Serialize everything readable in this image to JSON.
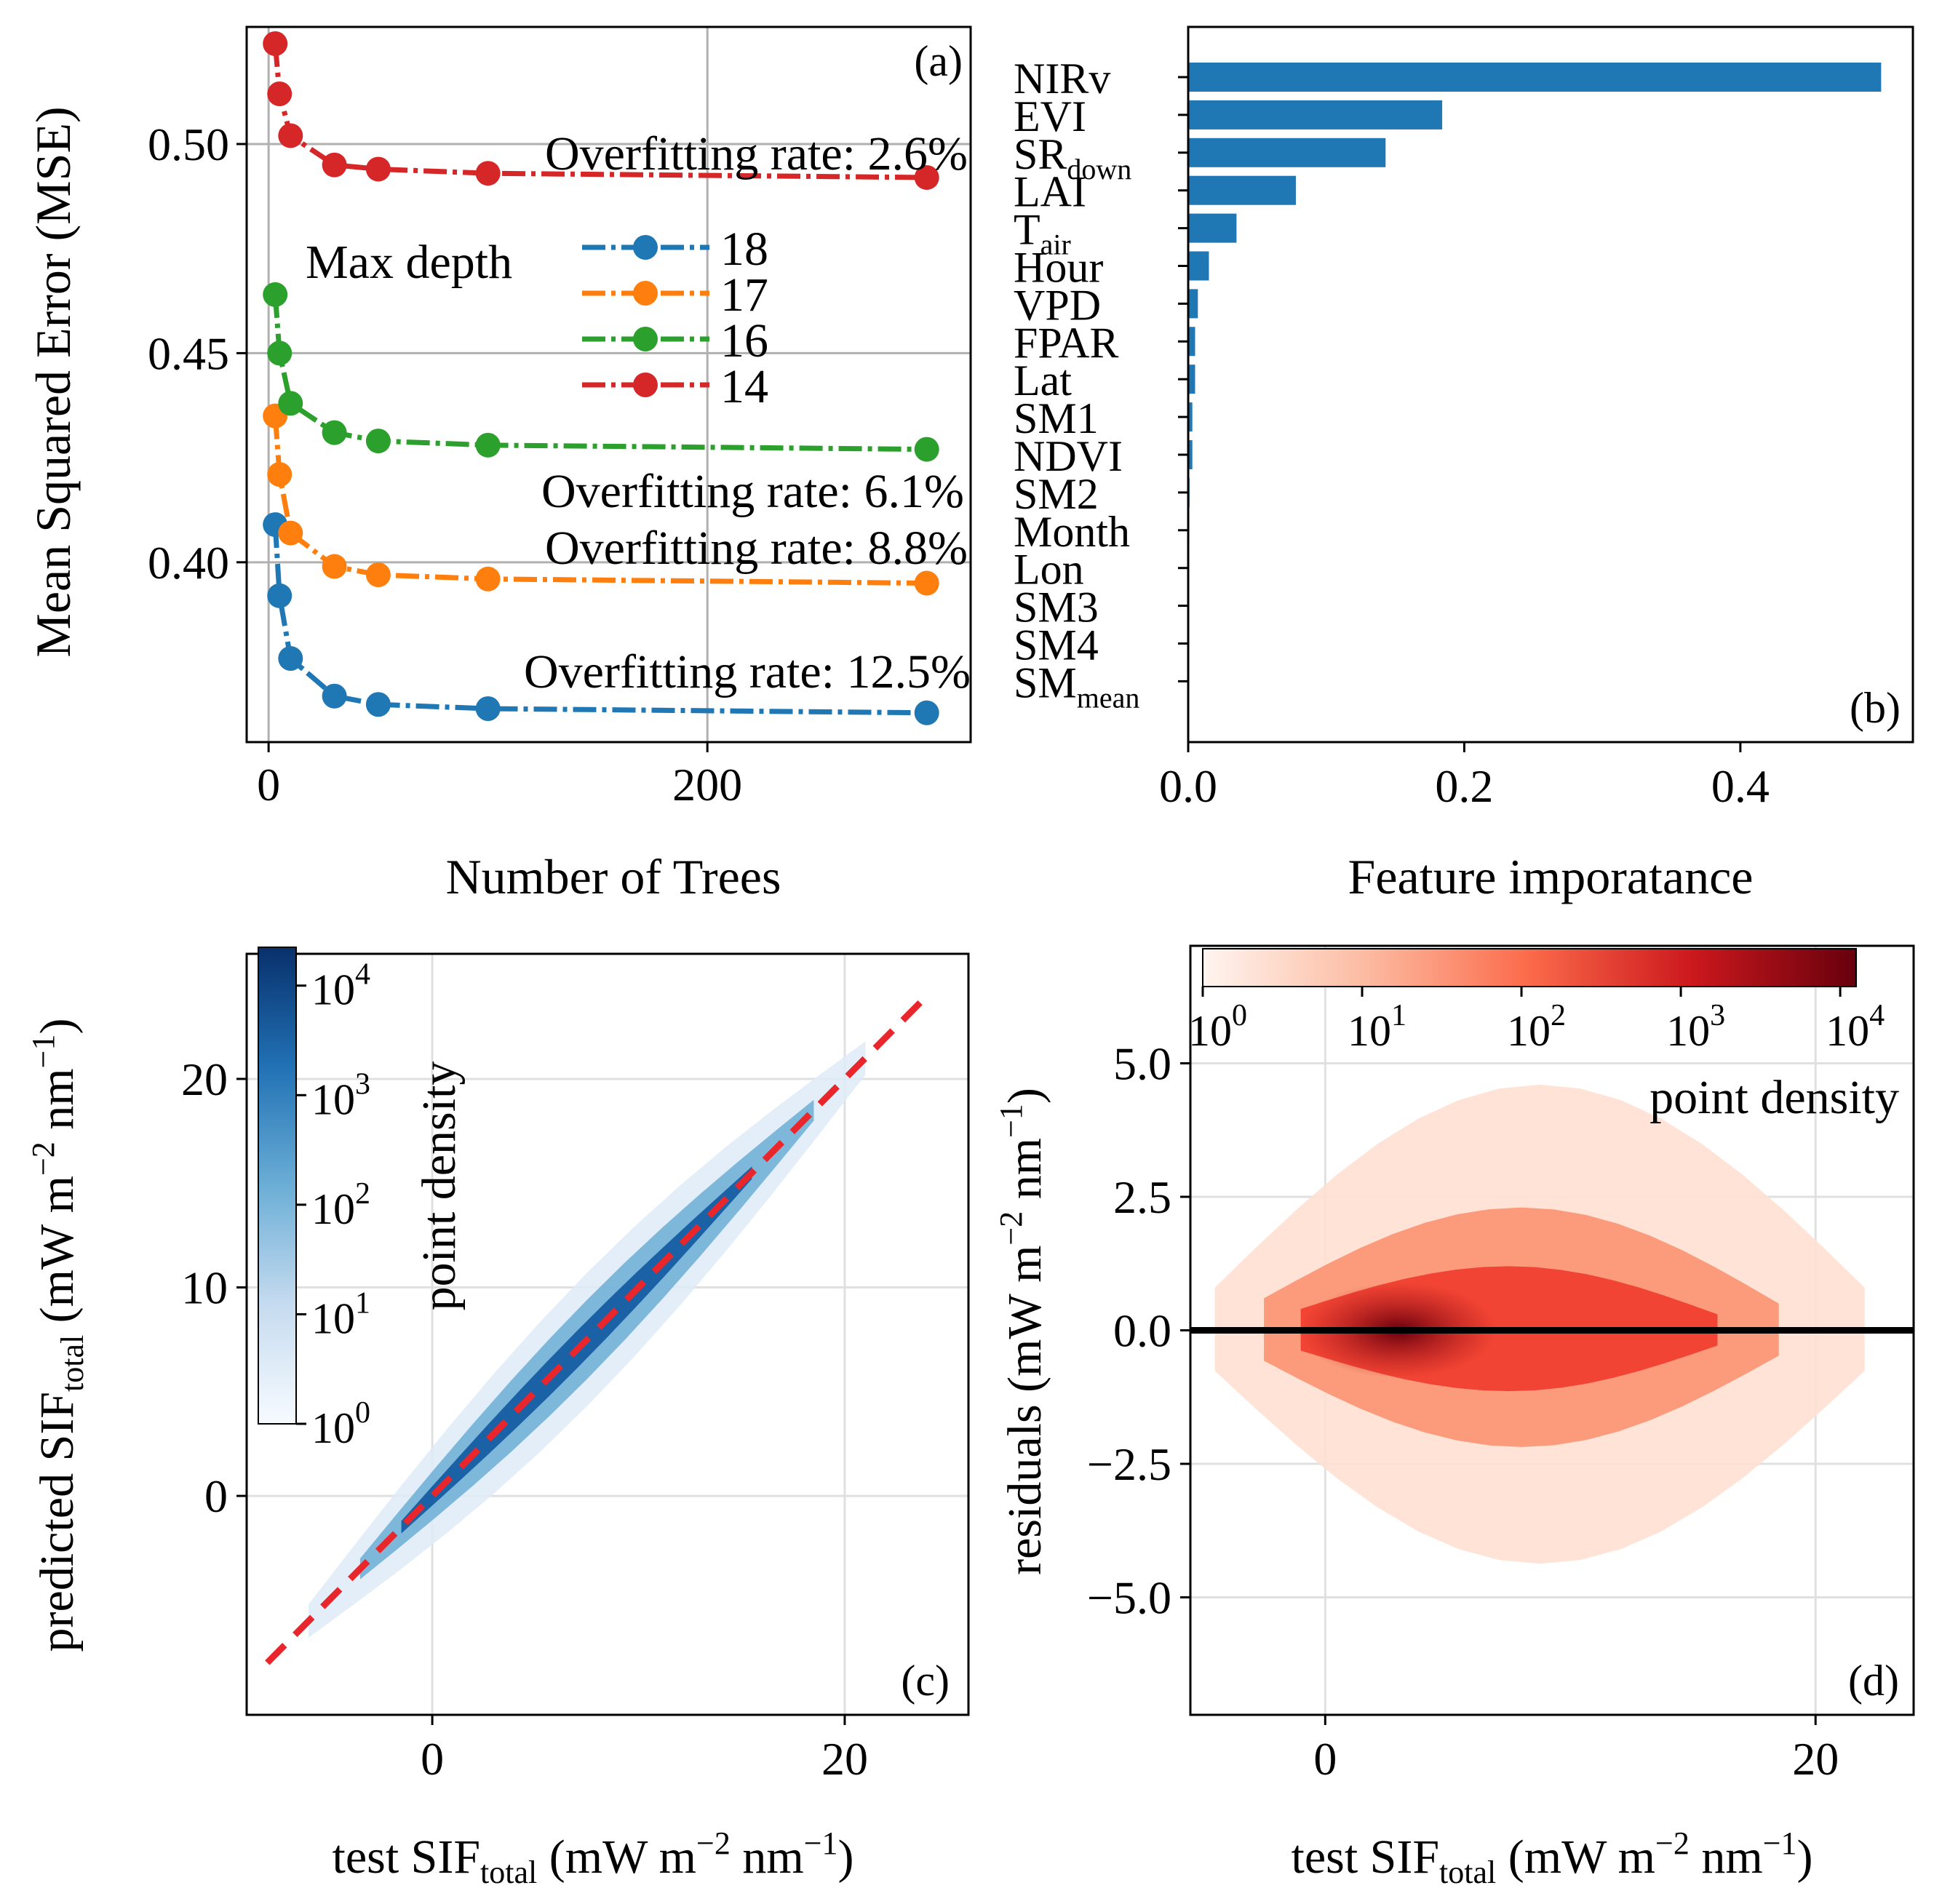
{
  "colors": {
    "c18": "#1f77b4",
    "c17": "#ff7f0e",
    "c16": "#2ca02c",
    "c14": "#d62728",
    "bar": "#1f77b4",
    "grid": "#b0b0b0",
    "identity": "#e8262b"
  },
  "chart_data": [
    {
      "panel": "a",
      "type": "line",
      "panel_label": "(a)",
      "xlabel": "Number of Trees",
      "ylabel": "Mean Squared Error (MSE)",
      "xlim": [
        -10,
        320
      ],
      "ylim": [
        0.357,
        0.528
      ],
      "xticks": [
        0,
        200
      ],
      "xtick_labels": [
        "0",
        "200"
      ],
      "yticks": [
        0.4,
        0.45,
        0.5
      ],
      "ytick_labels": [
        "0.40",
        "0.45",
        "0.50"
      ],
      "grid": true,
      "legend": {
        "title": "Max depth",
        "position": "center"
      },
      "x": [
        3,
        5,
        10,
        30,
        50,
        100,
        300
      ],
      "series": [
        {
          "name": "18",
          "color_key": "c18",
          "values": [
            0.409,
            0.392,
            0.377,
            0.368,
            0.366,
            0.365,
            0.364
          ]
        },
        {
          "name": "17",
          "color_key": "c17",
          "values": [
            0.435,
            0.421,
            0.407,
            0.399,
            0.397,
            0.396,
            0.395
          ]
        },
        {
          "name": "16",
          "color_key": "c16",
          "values": [
            0.464,
            0.45,
            0.438,
            0.431,
            0.429,
            0.428,
            0.427
          ]
        },
        {
          "name": "14",
          "color_key": "c14",
          "values": [
            0.524,
            0.512,
            0.502,
            0.495,
            0.494,
            0.493,
            0.492
          ]
        }
      ],
      "annotations": [
        {
          "text": "Overfitting rate: 2.6%",
          "series": "14"
        },
        {
          "text": "Overfitting rate: 6.1%",
          "series": "16"
        },
        {
          "text": "Overfitting rate: 8.8%",
          "series": "17"
        },
        {
          "text": "Overfitting rate: 12.5%",
          "series": "18"
        }
      ]
    },
    {
      "panel": "b",
      "type": "bar",
      "orientation": "horizontal",
      "panel_label": "(b)",
      "xlabel": "Feature imporatance",
      "xlim": [
        0,
        0.525
      ],
      "xticks": [
        0.0,
        0.2,
        0.4
      ],
      "xtick_labels": [
        "0.0",
        "0.2",
        "0.4"
      ],
      "categories": [
        {
          "main": "NIRv",
          "sub": ""
        },
        {
          "main": "EVI",
          "sub": ""
        },
        {
          "main": "SR",
          "sub": "down"
        },
        {
          "main": "LAI",
          "sub": ""
        },
        {
          "main": "T",
          "sub": "air"
        },
        {
          "main": "Hour",
          "sub": ""
        },
        {
          "main": "VPD",
          "sub": ""
        },
        {
          "main": "FPAR",
          "sub": ""
        },
        {
          "main": "Lat",
          "sub": ""
        },
        {
          "main": "SM1",
          "sub": ""
        },
        {
          "main": "NDVI",
          "sub": ""
        },
        {
          "main": "SM2",
          "sub": ""
        },
        {
          "main": "Month",
          "sub": ""
        },
        {
          "main": "Lon",
          "sub": ""
        },
        {
          "main": "SM3",
          "sub": ""
        },
        {
          "main": "SM4",
          "sub": ""
        },
        {
          "main": "SM",
          "sub": "mean"
        }
      ],
      "values": [
        0.502,
        0.184,
        0.143,
        0.078,
        0.035,
        0.015,
        0.007,
        0.005,
        0.005,
        0.003,
        0.003,
        0.001,
        0.0008,
        0.0005,
        0.0003,
        0.0002,
        0.0001
      ]
    },
    {
      "panel": "c",
      "type": "hexbin",
      "panel_label": "(c)",
      "xlabel": {
        "pre": "test SIF",
        "sub": "total",
        "post": " (mW m",
        "sup1": "−2",
        "mid": " nm",
        "sup2": "−1",
        "end": ")"
      },
      "ylabel": {
        "pre": "predicted SIF",
        "sub": "total",
        "post": " (mW m",
        "sup1": "−2",
        "mid": " nm",
        "sup2": "−1",
        "end": ")"
      },
      "xlim": [
        -9,
        26
      ],
      "ylim": [
        -10.5,
        26
      ],
      "xticks": [
        0,
        20
      ],
      "xtick_labels": [
        "0",
        "20"
      ],
      "yticks": [
        0,
        10,
        20
      ],
      "ytick_labels": [
        "0",
        "10",
        "20"
      ],
      "identity_line": {
        "from": [
          -8,
          -8
        ],
        "to": [
          24,
          24
        ],
        "style": "dashed"
      },
      "colorbar": {
        "label": "point density",
        "scale": "log",
        "ticks": [
          {
            "base": "10",
            "exp": "0"
          },
          {
            "base": "10",
            "exp": "1"
          },
          {
            "base": "10",
            "exp": "2"
          },
          {
            "base": "10",
            "exp": "3"
          },
          {
            "base": "10",
            "exp": "4"
          }
        ],
        "cmap": "Blues"
      }
    },
    {
      "panel": "d",
      "type": "hexbin",
      "panel_label": "(d)",
      "xlabel": {
        "pre": "test SIF",
        "sub": "total",
        "post": " (mW m",
        "sup1": "−2",
        "mid": " nm",
        "sup2": "−1",
        "end": ")"
      },
      "ylabel": {
        "pre": "residuals",
        "sub": "",
        "post": " (mW m",
        "sup1": "−2",
        "mid": " nm",
        "sup2": "−1",
        "end": ")"
      },
      "xlim": [
        -5.5,
        24
      ],
      "ylim": [
        -7.2,
        7.2
      ],
      "xticks": [
        0,
        20
      ],
      "xtick_labels": [
        "0",
        "20"
      ],
      "yticks": [
        -5.0,
        -2.5,
        0.0,
        2.5,
        5.0
      ],
      "ytick_labels": [
        "−5.0",
        "−2.5",
        "0.0",
        "2.5",
        "5.0"
      ],
      "zero_line": 0,
      "colorbar": {
        "label": "point density",
        "scale": "log",
        "ticks": [
          {
            "base": "10",
            "exp": "0"
          },
          {
            "base": "10",
            "exp": "1"
          },
          {
            "base": "10",
            "exp": "2"
          },
          {
            "base": "10",
            "exp": "3"
          },
          {
            "base": "10",
            "exp": "4"
          }
        ],
        "cmap": "Reds"
      }
    }
  ]
}
